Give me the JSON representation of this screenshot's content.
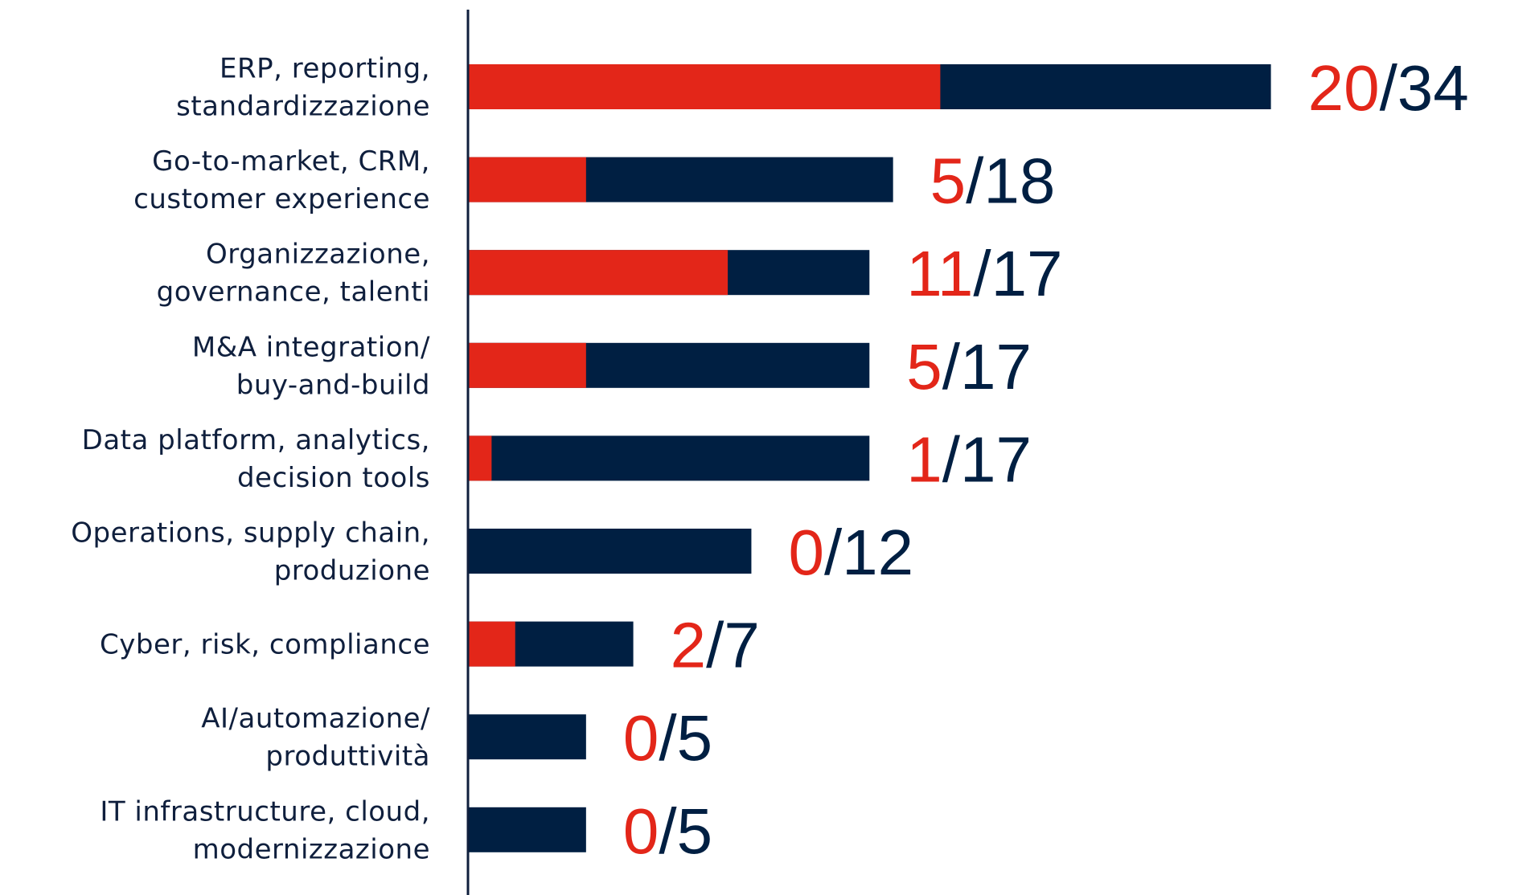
{
  "chart_data": {
    "type": "bar",
    "orientation": "horizontal",
    "categories": [
      [
        "ERP, reporting,",
        "standardizzazione"
      ],
      [
        "Go-to-market, CRM,",
        "customer experience"
      ],
      [
        "Organizzazione,",
        "governance, talenti"
      ],
      [
        "M&A integration/",
        "buy-and-build"
      ],
      [
        "Data platform, analytics,",
        "decision tools"
      ],
      [
        "Operations, supply chain,",
        "produzione"
      ],
      [
        "Cyber, risk, compliance"
      ],
      [
        "AI/automazione/",
        "produttività"
      ],
      [
        "IT infrastructure, cloud,",
        "modernizzazione"
      ]
    ],
    "series": [
      {
        "color": "#e32619",
        "values": [
          20,
          5,
          11,
          5,
          1,
          0,
          2,
          0,
          0
        ]
      },
      {
        "color": "#001f42",
        "values": [
          34,
          18,
          17,
          17,
          17,
          12,
          7,
          5,
          5
        ]
      }
    ],
    "separator": "/",
    "xlim": [
      0,
      34
    ]
  }
}
